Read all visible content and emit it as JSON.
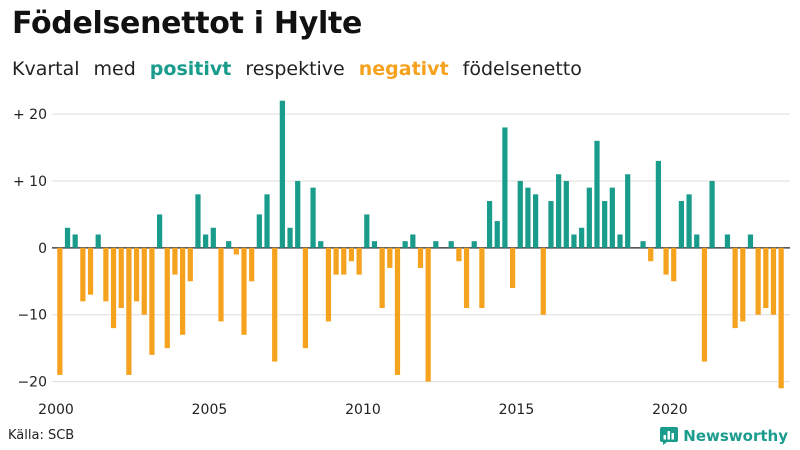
{
  "title": "Födelsenettot i Hylte",
  "subtitle": {
    "part1": "Kvartal",
    "part2": "med",
    "positive": "positivt",
    "part3": "respektive",
    "negative": "negativt",
    "part4": "födelsenetto"
  },
  "source": "Källa: SCB",
  "brand": "Newsworthy",
  "colors": {
    "positive": "#1a9c8c",
    "negative": "#f5a21f",
    "grid": "#dddddd",
    "axis": "#222222"
  },
  "chart_data": {
    "type": "bar",
    "title": "Födelsenettot i Hylte",
    "start_year": 2000,
    "periods_per_year": 4,
    "ylim": [
      -22,
      23
    ],
    "yticks": [
      {
        "value": 20,
        "label": "+ 20"
      },
      {
        "value": 10,
        "label": "+ 10"
      },
      {
        "value": 0,
        "label": "0"
      },
      {
        "value": -10,
        "label": "−10"
      },
      {
        "value": -20,
        "label": "−20"
      }
    ],
    "xticks": [
      {
        "year": 2000,
        "label": "2000"
      },
      {
        "year": 2005,
        "label": "2005"
      },
      {
        "year": 2010,
        "label": "2010"
      },
      {
        "year": 2015,
        "label": "2015"
      },
      {
        "year": 2020,
        "label": "2020"
      }
    ],
    "values": [
      -19,
      3,
      2,
      -8,
      -7,
      2,
      -8,
      -12,
      -9,
      -19,
      -8,
      -10,
      -16,
      5,
      -15,
      -4,
      -13,
      -5,
      8,
      2,
      3,
      -11,
      1,
      -1,
      -13,
      -5,
      5,
      8,
      -17,
      22,
      3,
      10,
      -15,
      9,
      1,
      -11,
      -4,
      -4,
      -2,
      -4,
      5,
      1,
      -9,
      -3,
      -19,
      1,
      2,
      -3,
      -20,
      1,
      0,
      1,
      -2,
      -9,
      1,
      -9,
      7,
      4,
      18,
      -6,
      10,
      9,
      8,
      -10,
      7,
      11,
      10,
      2,
      3,
      9,
      16,
      7,
      9,
      2,
      11,
      0,
      1,
      -2,
      13,
      -4,
      -5,
      7,
      8,
      2,
      -17,
      10,
      0,
      2,
      -12,
      -11,
      2,
      -10,
      -9,
      -10,
      -21
    ]
  }
}
